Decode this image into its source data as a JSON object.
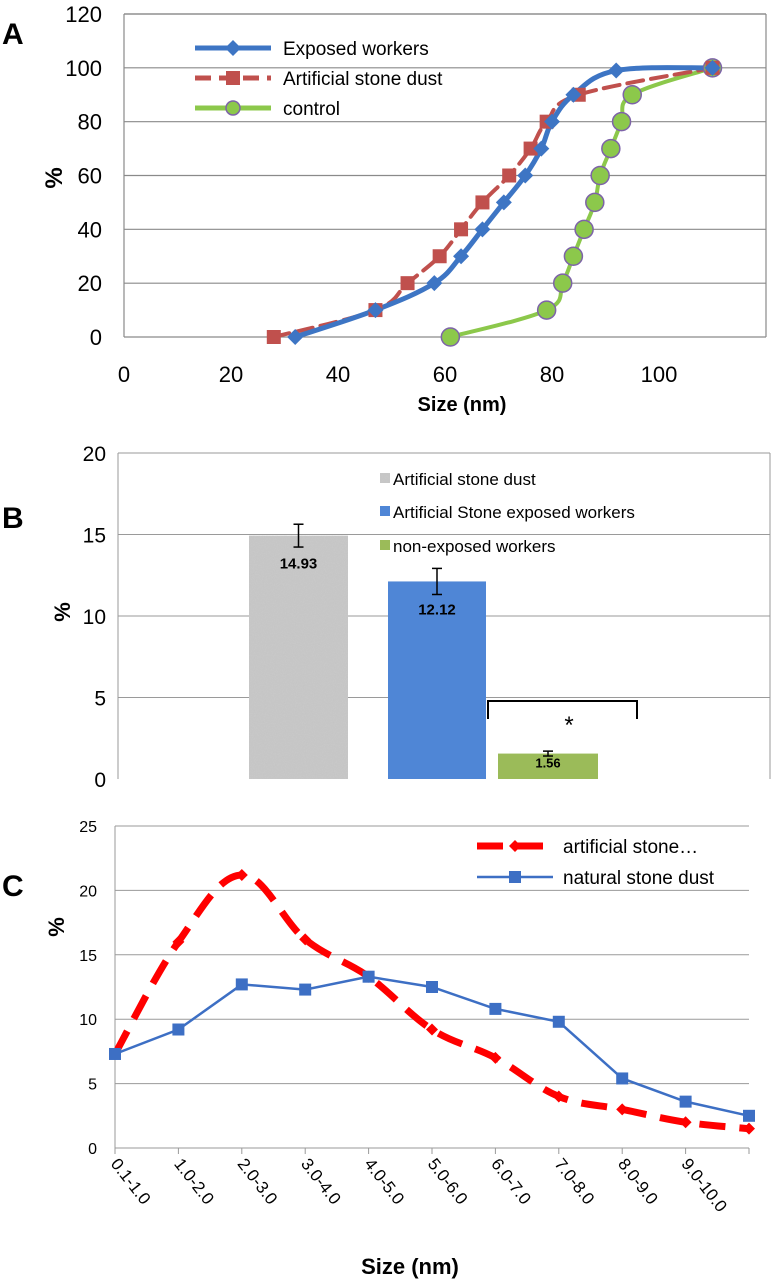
{
  "chart_data": [
    {
      "panel": "A",
      "type": "line",
      "title": "",
      "xlabel": "Size (nm)",
      "ylabel": "%",
      "xlim": [
        0,
        120
      ],
      "ylim": [
        0,
        120
      ],
      "xticks": [
        "0",
        "20",
        "40",
        "60",
        "80",
        "100"
      ],
      "yticks": [
        "0",
        "20",
        "40",
        "60",
        "80",
        "100",
        "120"
      ],
      "grid": "horizontal",
      "legend_position": "top-left",
      "series": [
        {
          "name": "Exposed workers",
          "color": "#3D75C4",
          "marker": "diamond",
          "x": [
            32,
            47,
            58,
            63,
            67,
            71,
            75,
            78,
            80,
            84,
            92,
            110
          ],
          "y": [
            0,
            10,
            20,
            30,
            40,
            50,
            60,
            70,
            80,
            90,
            99,
            100
          ]
        },
        {
          "name": "Artificial stone dust",
          "color": "#C0504D",
          "marker": "square",
          "dashed": true,
          "x": [
            28,
            47,
            53,
            59,
            63,
            67,
            72,
            76,
            79,
            85,
            110
          ],
          "y": [
            0,
            10,
            20,
            30,
            40,
            50,
            60,
            70,
            80,
            90,
            100
          ]
        },
        {
          "name": "control",
          "color": "#8CC84B",
          "marker": "circle",
          "x": [
            61,
            79,
            82,
            84,
            86,
            88,
            89,
            91,
            93,
            95,
            110
          ],
          "y": [
            0,
            10,
            20,
            30,
            40,
            50,
            60,
            70,
            80,
            90,
            100
          ]
        }
      ]
    },
    {
      "panel": "B",
      "type": "bar",
      "title": "",
      "xlabel": "",
      "ylabel": "%",
      "ylim": [
        0,
        20
      ],
      "yticks": [
        "0",
        "5",
        "10",
        "15",
        "20"
      ],
      "grid": "horizontal",
      "legend_position": "top-right",
      "categories": [
        "Artificial stone dust",
        "Artificial Stone exposed workers",
        "non-exposed workers"
      ],
      "values": [
        14.93,
        12.12,
        1.56
      ],
      "value_labels": [
        "14.93",
        "12.12",
        "1.56"
      ],
      "errors": [
        0.7,
        0.8,
        0.15
      ],
      "colors": [
        "#C8C8C8",
        "#4F86D6",
        "#9BBB59"
      ],
      "significance_marker": "*"
    },
    {
      "panel": "C",
      "type": "line",
      "title": "",
      "xlabel": "Size (nm)",
      "ylabel": "%",
      "ylim": [
        0,
        25
      ],
      "yticks": [
        "0",
        "5",
        "10",
        "15",
        "20",
        "25"
      ],
      "grid": "horizontal",
      "legend_position": "top-right",
      "categories": [
        "0.1-1.0",
        "1.0-2.0",
        "2.0-3.0",
        "3.0-4.0",
        "4.0-5.0",
        "5.0-6.0",
        "6.0-7.0",
        "7.0-8.0",
        "8.0-9.0",
        "9.0-10.0",
        ""
      ],
      "series": [
        {
          "name": "artificial stone…",
          "color": "#FF0000",
          "marker": "diamond",
          "dashed": true,
          "values": [
            7.3,
            16.0,
            21.2,
            16.2,
            13.3,
            9.2,
            7.0,
            4.0,
            3.0,
            2.0,
            1.5
          ]
        },
        {
          "name": "natural stone dust",
          "color": "#3D6FC4",
          "marker": "square",
          "values": [
            7.3,
            9.2,
            12.7,
            12.3,
            13.3,
            12.5,
            10.8,
            9.8,
            5.4,
            3.6,
            2.5
          ]
        }
      ]
    }
  ],
  "panel_letters": [
    "A",
    "B",
    "C"
  ]
}
